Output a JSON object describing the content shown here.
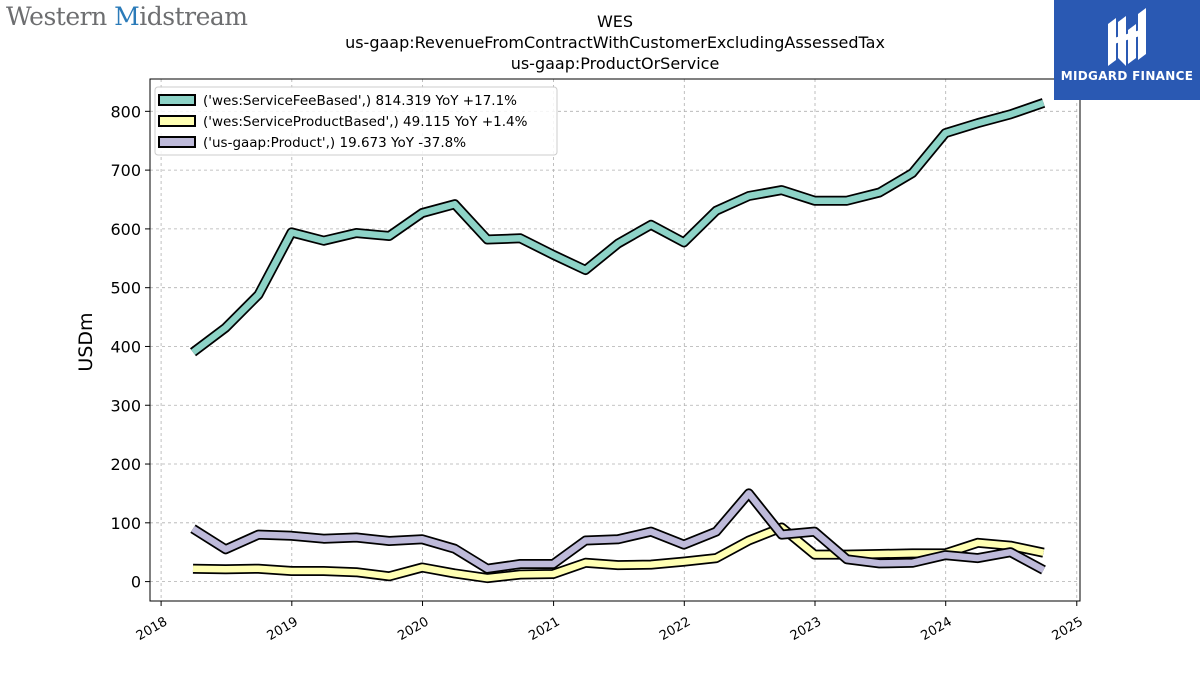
{
  "branding": {
    "company_logo_text_1": "Western",
    "company_logo_text_accent": "M",
    "company_logo_text_2": "idstream",
    "badge_name": "MIDGARD FINANCE"
  },
  "colors": {
    "series": [
      "#8dd3c7",
      "#ffffb3",
      "#bebada"
    ],
    "outline": "#000000",
    "badge_background": "#2a59b3"
  },
  "chart_data": {
    "type": "line",
    "title": [
      "WES",
      "us-gaap:RevenueFromContractWithCustomerExcludingAssessedTax",
      "us-gaap:ProductOrService"
    ],
    "ylabel": "USDm",
    "xlabel": "",
    "ylim": [
      -33,
      855
    ],
    "xlim": [
      "2017-12-01",
      "2025-01-10"
    ],
    "yticks": [
      0,
      100,
      200,
      300,
      400,
      500,
      600,
      700,
      800
    ],
    "xticks": [
      "2018",
      "2019",
      "2020",
      "2021",
      "2022",
      "2023",
      "2024",
      "2025"
    ],
    "grid": true,
    "legend_position": "top-left",
    "x": [
      "2018-03-31",
      "2018-06-30",
      "2018-09-30",
      "2018-12-31",
      "2019-03-31",
      "2019-06-30",
      "2019-09-30",
      "2019-12-31",
      "2020-03-31",
      "2020-06-30",
      "2020-09-30",
      "2020-12-31",
      "2021-03-31",
      "2021-06-30",
      "2021-09-30",
      "2021-12-31",
      "2022-03-31",
      "2022-06-30",
      "2022-09-30",
      "2022-12-31",
      "2023-03-31",
      "2023-06-30",
      "2023-09-30",
      "2023-12-31",
      "2024-03-31",
      "2024-06-30",
      "2024-09-30"
    ],
    "series": [
      {
        "name": "('wes:ServiceFeeBased',) 814.319 YoY +17.1%",
        "values": [
          390,
          432,
          488,
          594,
          580,
          593,
          588,
          627,
          642,
          582,
          584,
          556,
          530,
          575,
          607,
          577,
          631,
          656,
          666,
          648,
          648,
          662,
          695,
          763,
          780,
          795,
          814.319
        ]
      },
      {
        "name": "('wes:ServiceProductBased',) 49.115 YoY +1.4%",
        "values": [
          22,
          21,
          22,
          18,
          18,
          16,
          9,
          24,
          14,
          6,
          12,
          13,
          32,
          28,
          29,
          34,
          40,
          70,
          92,
          46,
          46,
          47,
          48,
          48,
          66,
          61,
          49.115
        ]
      },
      {
        "name": "('us-gaap:Product',) 19.673 YoY -37.8%",
        "values": [
          90,
          55,
          80,
          78,
          73,
          75,
          69,
          72,
          56,
          22,
          30,
          30,
          70,
          72,
          85,
          63,
          85,
          150,
          80,
          85,
          38,
          31,
          32,
          45,
          40,
          50,
          19.673
        ]
      }
    ]
  }
}
